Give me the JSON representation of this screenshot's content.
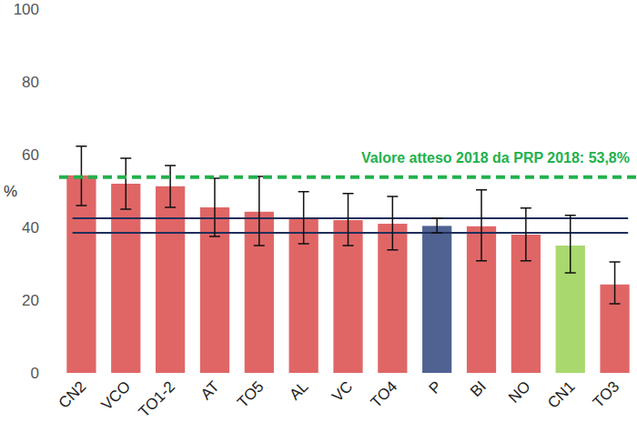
{
  "chart_data": {
    "type": "bar",
    "y_label": "%",
    "categories": [
      "CN2",
      "VCO",
      "TO1-2",
      "AT",
      "TO5",
      "AL",
      "VC",
      "TO4",
      "P",
      "BI",
      "NO",
      "CN1",
      "TO3"
    ],
    "values": [
      54.3,
      52,
      51.3,
      45.5,
      44.3,
      42.7,
      42,
      41,
      40.4,
      40.3,
      38,
      35,
      24.3
    ],
    "colors": [
      "#e06666",
      "#e06666",
      "#e06666",
      "#e06666",
      "#e06666",
      "#e06666",
      "#e06666",
      "#e06666",
      "#4f6292",
      "#e06666",
      "#e06666",
      "#a9d86e",
      "#e06666"
    ],
    "error_minus": [
      8.3,
      7,
      5.8,
      8,
      9.3,
      7.2,
      7,
      7.2,
      1.9,
      9.5,
      7.2,
      7.5,
      5.3
    ],
    "error_plus": [
      8,
      7,
      5.7,
      8,
      9.7,
      7.1,
      7.3,
      7.5,
      2.1,
      10,
      7.3,
      8.3,
      6.2
    ],
    "ylim": [
      0,
      100
    ],
    "yticks": [
      0,
      20,
      40,
      60,
      80,
      100
    ],
    "grid": false,
    "target": 53.8,
    "annotation": "Valore atteso 2018 da PRP 2018: 53,8%",
    "band": [
      38.5,
      42.5
    ]
  }
}
